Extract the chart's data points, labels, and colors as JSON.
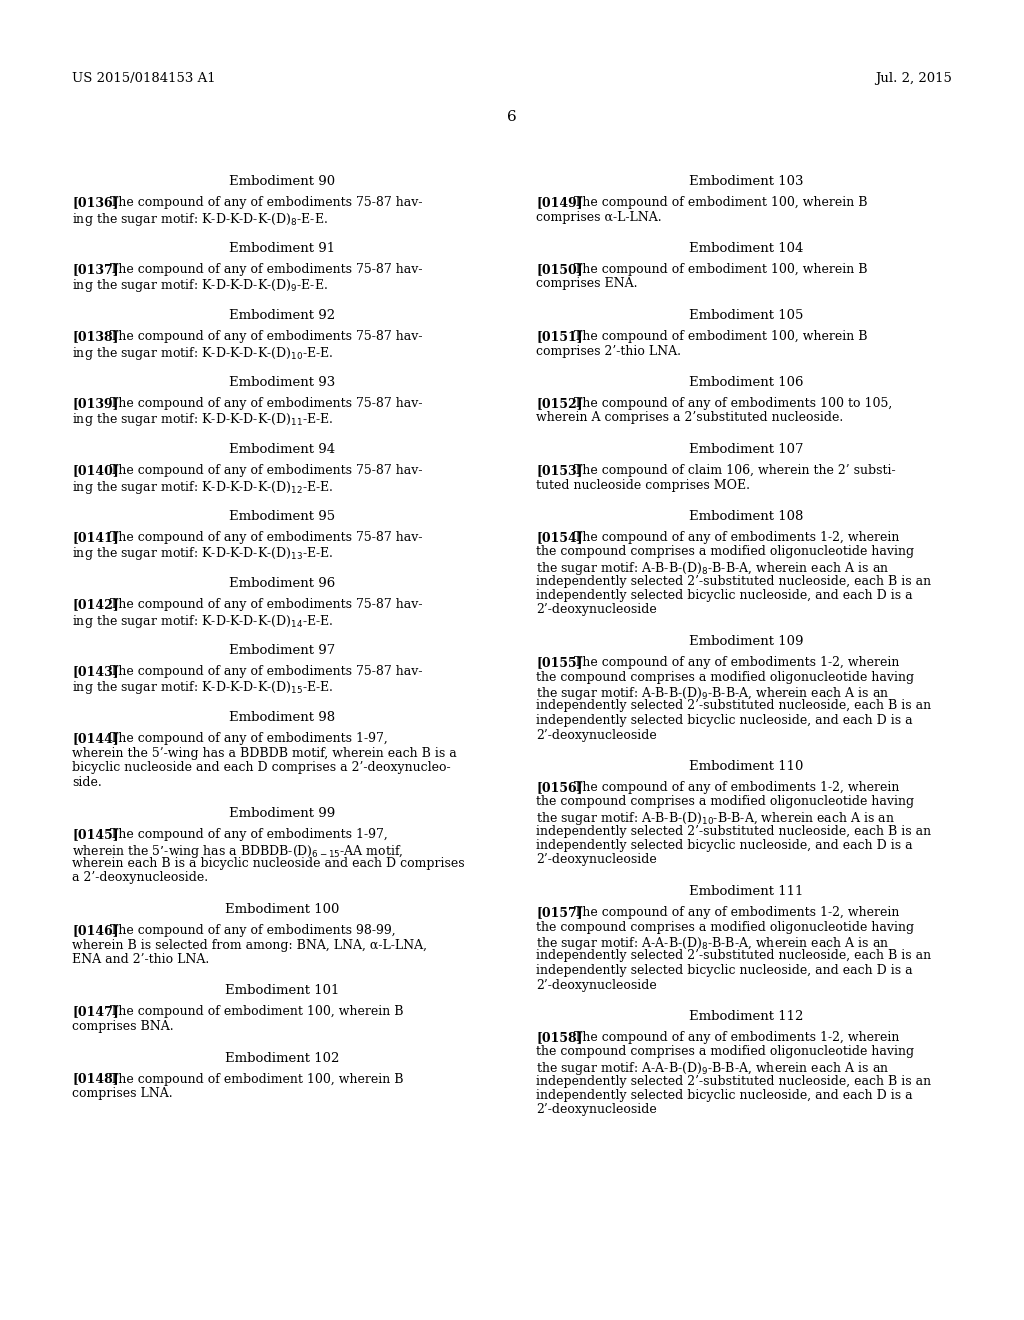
{
  "bg_color": "#ffffff",
  "header_left": "US 2015/0184153 A1",
  "header_right": "Jul. 2, 2015",
  "page_number": "6",
  "left_column": [
    {
      "type": "heading",
      "text": "Embodiment 90"
    },
    {
      "type": "paragraph",
      "tag": "[0136]",
      "lines": [
        "The compound of any of embodiments 75-87 hav-",
        "ing the sugar motif: K-D-K-D-K-(D)$_{8}$-E-E."
      ]
    },
    {
      "type": "heading",
      "text": "Embodiment 91"
    },
    {
      "type": "paragraph",
      "tag": "[0137]",
      "lines": [
        "The compound of any of embodiments 75-87 hav-",
        "ing the sugar motif: K-D-K-D-K-(D)$_{9}$-E-E."
      ]
    },
    {
      "type": "heading",
      "text": "Embodiment 92"
    },
    {
      "type": "paragraph",
      "tag": "[0138]",
      "lines": [
        "The compound of any of embodiments 75-87 hav-",
        "ing the sugar motif: K-D-K-D-K-(D)$_{10}$-E-E."
      ]
    },
    {
      "type": "heading",
      "text": "Embodiment 93"
    },
    {
      "type": "paragraph",
      "tag": "[0139]",
      "lines": [
        "The compound of any of embodiments 75-87 hav-",
        "ing the sugar motif: K-D-K-D-K-(D)$_{11}$-E-E."
      ]
    },
    {
      "type": "heading",
      "text": "Embodiment 94"
    },
    {
      "type": "paragraph",
      "tag": "[0140]",
      "lines": [
        "The compound of any of embodiments 75-87 hav-",
        "ing the sugar motif: K-D-K-D-K-(D)$_{12}$-E-E."
      ]
    },
    {
      "type": "heading",
      "text": "Embodiment 95"
    },
    {
      "type": "paragraph",
      "tag": "[0141]",
      "lines": [
        "The compound of any of embodiments 75-87 hav-",
        "ing the sugar motif: K-D-K-D-K-(D)$_{13}$-E-E."
      ]
    },
    {
      "type": "heading",
      "text": "Embodiment 96"
    },
    {
      "type": "paragraph",
      "tag": "[0142]",
      "lines": [
        "The compound of any of embodiments 75-87 hav-",
        "ing the sugar motif: K-D-K-D-K-(D)$_{14}$-E-E."
      ]
    },
    {
      "type": "heading",
      "text": "Embodiment 97"
    },
    {
      "type": "paragraph",
      "tag": "[0143]",
      "lines": [
        "The compound of any of embodiments 75-87 hav-",
        "ing the sugar motif: K-D-K-D-K-(D)$_{15}$-E-E."
      ]
    },
    {
      "type": "heading",
      "text": "Embodiment 98"
    },
    {
      "type": "paragraph",
      "tag": "[0144]",
      "lines": [
        "The compound of any of embodiments 1-97,",
        "wherein the 5’-wing has a BDBDB motif, wherein each B is a",
        "bicyclic nucleoside and each D comprises a 2’-deoxynucleo-",
        "side."
      ]
    },
    {
      "type": "heading",
      "text": "Embodiment 99"
    },
    {
      "type": "paragraph",
      "tag": "[0145]",
      "lines": [
        "The compound of any of embodiments 1-97,",
        "wherein the 5’-wing has a BDBDB-(D)$_{6-15}$-AA motif,",
        "wherein each B is a bicyclic nucleoside and each D comprises",
        "a 2’-deoxynucleoside."
      ]
    },
    {
      "type": "heading",
      "text": "Embodiment 100"
    },
    {
      "type": "paragraph",
      "tag": "[0146]",
      "lines": [
        "The compound of any of embodiments 98-99,",
        "wherein B is selected from among: BNA, LNA, α-L-LNA,",
        "ENA and 2’-thio LNA."
      ]
    },
    {
      "type": "heading",
      "text": "Embodiment 101"
    },
    {
      "type": "paragraph",
      "tag": "[0147]",
      "lines": [
        "The compound of embodiment 100, wherein B",
        "comprises BNA."
      ]
    },
    {
      "type": "heading",
      "text": "Embodiment 102"
    },
    {
      "type": "paragraph",
      "tag": "[0148]",
      "lines": [
        "The compound of embodiment 100, wherein B",
        "comprises LNA."
      ]
    }
  ],
  "right_column": [
    {
      "type": "heading",
      "text": "Embodiment 103"
    },
    {
      "type": "paragraph",
      "tag": "[0149]",
      "lines": [
        "The compound of embodiment 100, wherein B",
        "comprises α-L-LNA."
      ]
    },
    {
      "type": "heading",
      "text": "Embodiment 104"
    },
    {
      "type": "paragraph",
      "tag": "[0150]",
      "lines": [
        "The compound of embodiment 100, wherein B",
        "comprises ENA."
      ]
    },
    {
      "type": "heading",
      "text": "Embodiment 105"
    },
    {
      "type": "paragraph",
      "tag": "[0151]",
      "lines": [
        "The compound of embodiment 100, wherein B",
        "comprises 2’-thio LNA."
      ]
    },
    {
      "type": "heading",
      "text": "Embodiment 106"
    },
    {
      "type": "paragraph",
      "tag": "[0152]",
      "lines": [
        "The compound of any of embodiments 100 to 105,",
        "wherein A comprises a 2’substituted nucleoside."
      ]
    },
    {
      "type": "heading",
      "text": "Embodiment 107"
    },
    {
      "type": "paragraph",
      "tag": "[0153]",
      "bold_inline": "106",
      "lines": [
        "The compound of claim 106, wherein the 2’ substi-",
        "tuted nucleoside comprises MOE."
      ]
    },
    {
      "type": "heading",
      "text": "Embodiment 108"
    },
    {
      "type": "paragraph",
      "tag": "[0154]",
      "lines": [
        "The compound of any of embodiments 1-2, wherein",
        "the compound comprises a modified oligonucleotide having",
        "the sugar motif: A-B-B-(D)$_{8}$-B-B-A, wherein each A is an",
        "independently selected 2’-substituted nucleoside, each B is an",
        "independently selected bicyclic nucleoside, and each D is a",
        "2’-deoxynucleoside"
      ]
    },
    {
      "type": "heading",
      "text": "Embodiment 109"
    },
    {
      "type": "paragraph",
      "tag": "[0155]",
      "lines": [
        "The compound of any of embodiments 1-2, wherein",
        "the compound comprises a modified oligonucleotide having",
        "the sugar motif: A-B-B-(D)$_{9}$-B-B-A, wherein each A is an",
        "independently selected 2’-substituted nucleoside, each B is an",
        "independently selected bicyclic nucleoside, and each D is a",
        "2’-deoxynucleoside"
      ]
    },
    {
      "type": "heading",
      "text": "Embodiment 110"
    },
    {
      "type": "paragraph",
      "tag": "[0156]",
      "lines": [
        "The compound of any of embodiments 1-2, wherein",
        "the compound comprises a modified oligonucleotide having",
        "the sugar motif: A-B-B-(D)$_{10}$-B-B-A, wherein each A is an",
        "independently selected 2’-substituted nucleoside, each B is an",
        "independently selected bicyclic nucleoside, and each D is a",
        "2’-deoxynucleoside"
      ]
    },
    {
      "type": "heading",
      "text": "Embodiment 111"
    },
    {
      "type": "paragraph",
      "tag": "[0157]",
      "lines": [
        "The compound of any of embodiments 1-2, wherein",
        "the compound comprises a modified oligonucleotide having",
        "the sugar motif: A-A-B-(D)$_{8}$-B-B-A, wherein each A is an",
        "independently selected 2’-substituted nucleoside, each B is an",
        "independently selected bicyclic nucleoside, and each D is a",
        "2’-deoxynucleoside"
      ]
    },
    {
      "type": "heading",
      "text": "Embodiment 112"
    },
    {
      "type": "paragraph",
      "tag": "[0158]",
      "lines": [
        "The compound of any of embodiments 1-2, wherein",
        "the compound comprises a modified oligonucleotide having",
        "the sugar motif: A-A-B-(D)$_{9}$-B-B-A, wherein each A is an",
        "independently selected 2’-substituted nucleoside, each B is an",
        "independently selected bicyclic nucleoside, and each D is a",
        "2’-deoxynucleoside"
      ]
    }
  ]
}
